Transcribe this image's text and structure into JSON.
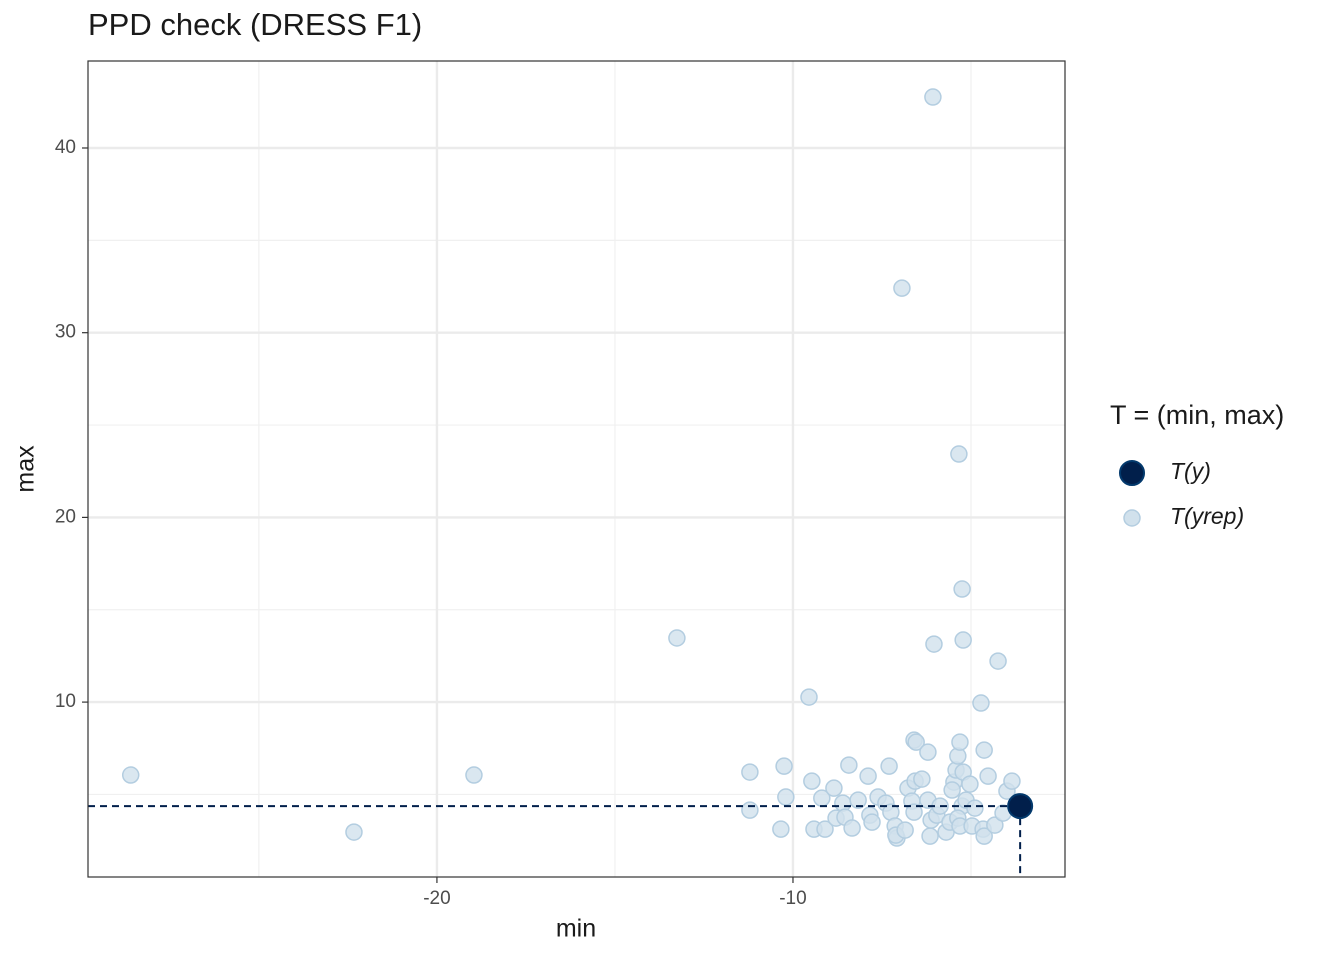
{
  "chart_data": {
    "type": "scatter",
    "title": "PPD check (DRESS F1)",
    "x_label": "min",
    "y_label": "max",
    "legend_title": "T = (min, max)",
    "xlim": [
      -29.8,
      -2.36
    ],
    "ylim": [
      0.53,
      44.71
    ],
    "xticks": [
      -20,
      -10
    ],
    "yticks": [
      10,
      20,
      30,
      40
    ],
    "grid": true,
    "legend": "right",
    "series": [
      {
        "name": "T(y)",
        "color": "#011f4b",
        "x": [
          -3.62
        ],
        "y": [
          4.37
        ]
      },
      {
        "name": "T(yrep)",
        "color": "#d1e1ec",
        "x": [
          -6.07,
          -6.94,
          -5.34,
          -5.25,
          -13.26,
          -6.04,
          -5.22,
          -4.24,
          -9.55,
          -4.72,
          -28.6,
          -18.96,
          -22.33,
          -11.21,
          -11.21,
          -10.25,
          -10.2,
          -10.34,
          -9.47,
          -9.19,
          -8.85,
          -9.41,
          -9.1,
          -8.43,
          -8.6,
          -8.79,
          -8.54,
          -8.34,
          -8.17,
          -7.89,
          -7.84,
          -7.78,
          -7.61,
          -7.39,
          -7.3,
          -7.25,
          -7.13,
          -7.08,
          -7.11,
          -6.85,
          -6.77,
          -6.6,
          -6.54,
          -6.66,
          -6.57,
          -6.38,
          -6.6,
          -6.21,
          -6.21,
          -6.15,
          -6.12,
          -5.96,
          -5.7,
          -5.59,
          -5.48,
          -5.42,
          -5.37,
          -5.31,
          -5.22,
          -5.25,
          -5.37,
          -5.31,
          -5.14,
          -5.03,
          -4.97,
          -4.89,
          -4.66,
          -4.63,
          -4.63,
          -4.52,
          -4.33,
          -4.1,
          -3.99,
          -3.85,
          -5.53,
          -5.87
        ],
        "y": [
          42.76,
          32.41,
          23.43,
          16.12,
          13.47,
          13.14,
          13.36,
          12.22,
          10.27,
          9.95,
          6.05,
          6.05,
          2.96,
          6.21,
          4.15,
          6.53,
          4.86,
          3.12,
          5.72,
          4.8,
          5.34,
          3.12,
          3.12,
          6.59,
          4.53,
          3.72,
          3.77,
          3.18,
          4.69,
          5.99,
          3.88,
          3.5,
          4.86,
          4.53,
          6.53,
          4.04,
          3.29,
          2.64,
          2.8,
          3.07,
          5.34,
          7.94,
          7.83,
          4.64,
          5.72,
          5.83,
          4.04,
          7.29,
          4.69,
          2.74,
          3.61,
          3.88,
          2.96,
          3.5,
          5.67,
          6.32,
          7.08,
          7.83,
          6.21,
          4.37,
          3.72,
          3.29,
          4.69,
          5.56,
          3.29,
          4.26,
          3.12,
          2.74,
          7.4,
          5.99,
          3.34,
          3.99,
          5.18,
          5.72,
          5.24,
          4.37
        ]
      }
    ]
  }
}
